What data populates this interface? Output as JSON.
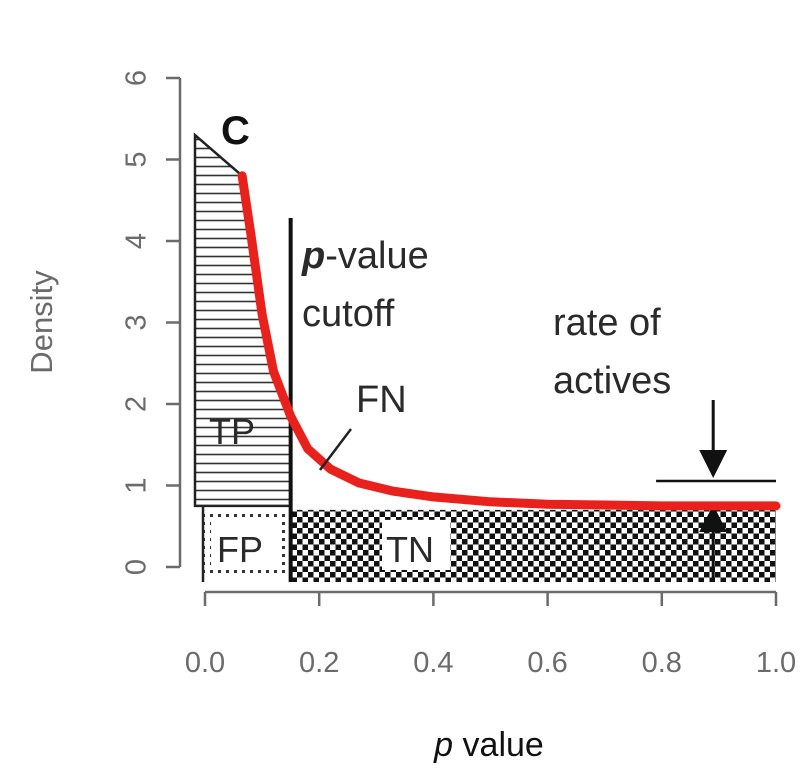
{
  "chart_data": {
    "type": "area",
    "panel_label": "C",
    "xlabel_italic": "p",
    "xlabel_rest": " value",
    "ylabel": "Density",
    "xlim": [
      0.0,
      1.0
    ],
    "ylim": [
      0,
      6
    ],
    "x_ticks": [
      0.0,
      0.2,
      0.4,
      0.6,
      0.8,
      1.0
    ],
    "x_tick_labels": [
      "0.0",
      "0.2",
      "0.4",
      "0.6",
      "0.8",
      "1.0"
    ],
    "y_ticks": [
      0,
      1,
      2,
      3,
      4,
      5,
      6
    ],
    "y_tick_labels": [
      "0",
      "1",
      "2",
      "3",
      "4",
      "5",
      "6"
    ],
    "grid": false,
    "series": [
      {
        "color": "#e8211c",
        "x": [
          0.065,
          0.08,
          0.1,
          0.12,
          0.15,
          0.18,
          0.22,
          0.27,
          0.33,
          0.4,
          0.5,
          0.6,
          0.7,
          0.8,
          0.9,
          1.0
        ],
        "y": [
          4.8,
          4.1,
          3.1,
          2.4,
          1.85,
          1.45,
          1.2,
          1.03,
          0.93,
          0.86,
          0.8,
          0.77,
          0.76,
          0.75,
          0.75,
          0.75
        ]
      }
    ],
    "null_rate": 0.75,
    "cutoff": 0.15,
    "active_region_top": [
      [
        0.0,
        5.3
      ],
      [
        0.065,
        4.8
      ]
    ],
    "annotations": {
      "cutoff_bold": "p",
      "cutoff_line1_rest": "-value",
      "cutoff_line2": "cutoff",
      "fn": "FN",
      "tp": "TP",
      "fp": "FP",
      "tn": "TN",
      "rate_line1": "rate of",
      "rate_line2": "actives"
    }
  }
}
